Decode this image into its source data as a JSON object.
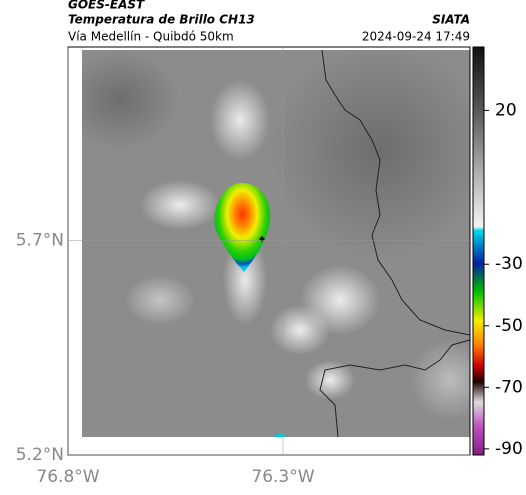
{
  "header": {
    "source": "GOES-EAST",
    "title": "Temperatura de Brillo CH13",
    "subtitle": "Vía Medellín - Quibdó 50km",
    "agency": "SIATA",
    "datetime": "2024-09-24 17:49"
  },
  "map": {
    "latlim": [
      5.2,
      6.15
    ],
    "lonlim": [
      -76.8,
      -75.865
    ],
    "lat_ticks": [
      {
        "value": 5.7,
        "label": "5.7°N"
      },
      {
        "value": 5.2,
        "label": "5.2°N"
      }
    ],
    "lon_ticks": [
      {
        "value": -76.8,
        "label": "76.8°W"
      },
      {
        "value": -76.3,
        "label": "76.3°W"
      }
    ]
  },
  "colorbar": {
    "lim": [
      -92,
      40.6
    ],
    "ticks": [
      20,
      -30,
      -50,
      -70,
      -90
    ]
  }
}
